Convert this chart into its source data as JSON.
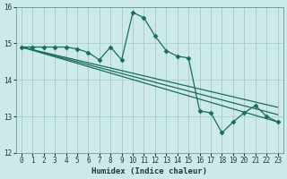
{
  "xlabel": "Humidex (Indice chaleur)",
  "ylabel": "",
  "background_color": "#cceae7",
  "grid_color": "#aad4d0",
  "line_color": "#1a6b60",
  "xlim": [
    -0.5,
    23.5
  ],
  "ylim": [
    12,
    16
  ],
  "yticks": [
    12,
    13,
    14,
    15,
    16
  ],
  "xticks": [
    0,
    1,
    2,
    3,
    4,
    5,
    6,
    7,
    8,
    9,
    10,
    11,
    12,
    13,
    14,
    15,
    16,
    17,
    18,
    19,
    20,
    21,
    22,
    23
  ],
  "series": [
    {
      "x": [
        0,
        1,
        2,
        3,
        4,
        5,
        6,
        7,
        8,
        9,
        10,
        11,
        12,
        13,
        14,
        15,
        16,
        17,
        18,
        19,
        20,
        21,
        22,
        23
      ],
      "y": [
        14.9,
        14.9,
        14.9,
        14.9,
        14.9,
        14.85,
        14.75,
        14.55,
        14.9,
        14.55,
        15.85,
        15.7,
        15.2,
        14.8,
        14.65,
        14.6,
        13.15,
        13.1,
        12.55,
        12.85,
        13.1,
        13.3,
        13.0,
        12.85
      ],
      "marker": "D",
      "markersize": 2.5,
      "linestyle": "-",
      "linewidth": 0.9
    },
    {
      "x": [
        0,
        23
      ],
      "y": [
        14.9,
        12.85
      ],
      "marker": null,
      "markersize": 0,
      "linestyle": "-",
      "linewidth": 0.9
    },
    {
      "x": [
        0,
        23
      ],
      "y": [
        14.9,
        13.05
      ],
      "marker": null,
      "markersize": 0,
      "linestyle": "-",
      "linewidth": 0.9
    },
    {
      "x": [
        0,
        23
      ],
      "y": [
        14.9,
        13.25
      ],
      "marker": null,
      "markersize": 0,
      "linestyle": "-",
      "linewidth": 0.9
    }
  ]
}
